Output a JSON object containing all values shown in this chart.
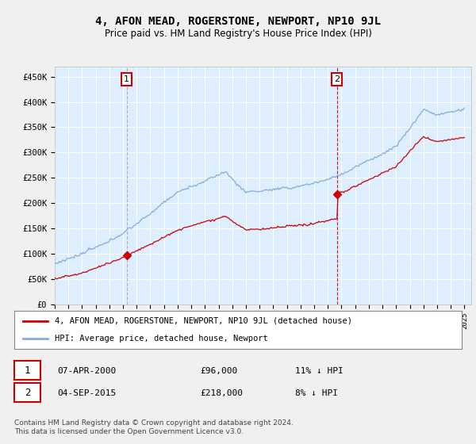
{
  "title": "4, AFON MEAD, ROGERSTONE, NEWPORT, NP10 9JL",
  "subtitle": "Price paid vs. HM Land Registry's House Price Index (HPI)",
  "ylabel_ticks": [
    "£0",
    "£50K",
    "£100K",
    "£150K",
    "£200K",
    "£250K",
    "£300K",
    "£350K",
    "£400K",
    "£450K"
  ],
  "ytick_values": [
    0,
    50000,
    100000,
    150000,
    200000,
    250000,
    300000,
    350000,
    400000,
    450000
  ],
  "ylim": [
    0,
    470000
  ],
  "xlim_start": 1995.0,
  "xlim_end": 2025.5,
  "fig_bg_color": "#f0f0f0",
  "plot_bg_color": "#ddeeff",
  "grid_color": "#ffffff",
  "hpi_color": "#88aadd",
  "price_color": "#cc0000",
  "sale1_year": 2000.27,
  "sale1_price": 96000,
  "sale2_year": 2015.67,
  "sale2_price": 218000,
  "legend_label_red": "4, AFON MEAD, ROGERSTONE, NEWPORT, NP10 9JL (detached house)",
  "legend_label_blue": "HPI: Average price, detached house, Newport",
  "footer": "Contains HM Land Registry data © Crown copyright and database right 2024.\nThis data is licensed under the Open Government Licence v3.0.",
  "xtick_years": [
    1995,
    1996,
    1997,
    1998,
    1999,
    2000,
    2001,
    2002,
    2003,
    2004,
    2005,
    2006,
    2007,
    2008,
    2009,
    2010,
    2011,
    2012,
    2013,
    2014,
    2015,
    2016,
    2017,
    2018,
    2019,
    2020,
    2021,
    2022,
    2023,
    2024,
    2025
  ]
}
